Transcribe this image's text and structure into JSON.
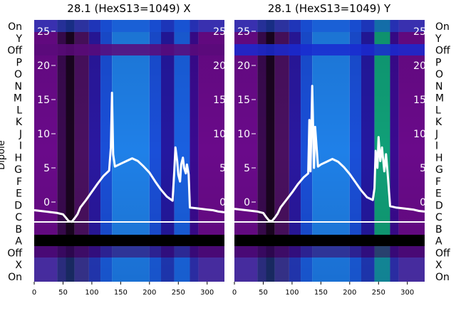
{
  "chart_data": [
    {
      "type": "heatmap",
      "title": "28.1 (HexS13=1049) X",
      "ylabel": "Dipole",
      "xlim": [
        0,
        330
      ],
      "xticks": [
        0,
        50,
        100,
        150,
        200,
        250,
        300
      ],
      "row_labels": [
        "On",
        "Y",
        "Off",
        "P",
        "O",
        "N",
        "M",
        "L",
        "K",
        "J",
        "I",
        "H",
        "G",
        "F",
        "E",
        "D",
        "C",
        "B",
        "A",
        "Off",
        "X",
        "On"
      ],
      "inner_ylim": [
        -3,
        27
      ],
      "inner_yticks": [
        0,
        5,
        10,
        15,
        20,
        25
      ],
      "trace": {
        "x": [
          0,
          20,
          40,
          50,
          55,
          60,
          65,
          70,
          75,
          80,
          90,
          100,
          110,
          120,
          130,
          133,
          135,
          137,
          140,
          150,
          160,
          170,
          180,
          190,
          200,
          210,
          220,
          230,
          240,
          243,
          245,
          248,
          250,
          253,
          255,
          258,
          260,
          263,
          265,
          268,
          270,
          280,
          290,
          300,
          310,
          320,
          330
        ],
        "y": [
          -1.2,
          -1.4,
          -1.6,
          -1.8,
          -2.3,
          -2.8,
          -2.9,
          -2.4,
          -1.8,
          -0.8,
          0.3,
          1.5,
          2.7,
          3.8,
          4.6,
          8.0,
          16.0,
          7.0,
          5.2,
          5.6,
          6.0,
          6.4,
          6.0,
          5.2,
          4.3,
          3.0,
          1.8,
          0.8,
          0.2,
          4.5,
          8.0,
          6.0,
          4.0,
          3.0,
          5.5,
          6.5,
          5.0,
          4.2,
          5.5,
          4.0,
          -0.8,
          -0.9,
          -1.0,
          -1.1,
          -1.2,
          -1.4,
          -1.5
        ]
      },
      "stripes": [
        {
          "x0": 0,
          "x1": 40,
          "color": "#6a0a8a"
        },
        {
          "x0": 40,
          "x1": 55,
          "color": "#3a0a50"
        },
        {
          "x0": 55,
          "x1": 70,
          "color": "#1a0420"
        },
        {
          "x0": 70,
          "x1": 95,
          "color": "#4a1060"
        },
        {
          "x0": 95,
          "x1": 115,
          "color": "#2a18a0"
        },
        {
          "x0": 115,
          "x1": 135,
          "color": "#1a4fd8"
        },
        {
          "x0": 135,
          "x1": 200,
          "color": "#1f80e8"
        },
        {
          "x0": 200,
          "x1": 220,
          "color": "#1a4fd8"
        },
        {
          "x0": 220,
          "x1": 243,
          "color": "#2418a0"
        },
        {
          "x0": 243,
          "x1": 270,
          "color": "#1a60e0"
        },
        {
          "x0": 270,
          "x1": 285,
          "color": "#3a0a90"
        },
        {
          "x0": 285,
          "x1": 330,
          "color": "#6a0a8a"
        }
      ]
    },
    {
      "type": "heatmap",
      "title": "28.1 (HexS13=1049) Y",
      "xlim": [
        0,
        330
      ],
      "xticks": [
        0,
        50,
        100,
        150,
        200,
        250,
        300
      ],
      "row_labels": [
        "On",
        "Y",
        "Off",
        "P",
        "O",
        "N",
        "M",
        "L",
        "K",
        "J",
        "I",
        "H",
        "G",
        "F",
        "E",
        "D",
        "C",
        "B",
        "A",
        "Off",
        "X",
        "On"
      ],
      "inner_ylim": [
        -3,
        27
      ],
      "inner_yticks": [
        0,
        5,
        10,
        15,
        20,
        25
      ],
      "trace": {
        "x": [
          0,
          20,
          40,
          50,
          55,
          60,
          65,
          70,
          75,
          80,
          90,
          100,
          110,
          120,
          128,
          130,
          132,
          135,
          138,
          140,
          145,
          150,
          160,
          170,
          180,
          190,
          200,
          210,
          220,
          230,
          240,
          243,
          245,
          248,
          250,
          253,
          256,
          260,
          263,
          266,
          270,
          280,
          290,
          300,
          310,
          320,
          330
        ],
        "y": [
          -1.0,
          -1.2,
          -1.4,
          -1.6,
          -2.2,
          -2.7,
          -2.8,
          -2.3,
          -1.7,
          -0.8,
          0.3,
          1.4,
          2.6,
          3.6,
          4.2,
          12.0,
          4.5,
          17.0,
          5.0,
          11.0,
          5.2,
          5.5,
          5.9,
          6.3,
          5.9,
          5.1,
          4.1,
          2.9,
          1.7,
          0.7,
          0.3,
          2.0,
          7.5,
          5.0,
          9.5,
          6.0,
          8.0,
          4.5,
          7.0,
          4.0,
          -0.6,
          -0.8,
          -0.9,
          -1.0,
          -1.1,
          -1.3,
          -1.4
        ]
      },
      "stripes": [
        {
          "x0": 0,
          "x1": 40,
          "color": "#6a0a8a"
        },
        {
          "x0": 40,
          "x1": 55,
          "color": "#3a0a50"
        },
        {
          "x0": 55,
          "x1": 70,
          "color": "#1a0420"
        },
        {
          "x0": 70,
          "x1": 95,
          "color": "#4a1060"
        },
        {
          "x0": 95,
          "x1": 115,
          "color": "#2a18a0"
        },
        {
          "x0": 115,
          "x1": 135,
          "color": "#1a4fd8"
        },
        {
          "x0": 135,
          "x1": 200,
          "color": "#1f80e8"
        },
        {
          "x0": 200,
          "x1": 220,
          "color": "#1a4fd8"
        },
        {
          "x0": 220,
          "x1": 243,
          "color": "#2418a0"
        },
        {
          "x0": 243,
          "x1": 270,
          "color": "#10a078"
        },
        {
          "x0": 270,
          "x1": 285,
          "color": "#3a0a90"
        },
        {
          "x0": 285,
          "x1": 330,
          "color": "#6a0a8a"
        }
      ]
    }
  ]
}
